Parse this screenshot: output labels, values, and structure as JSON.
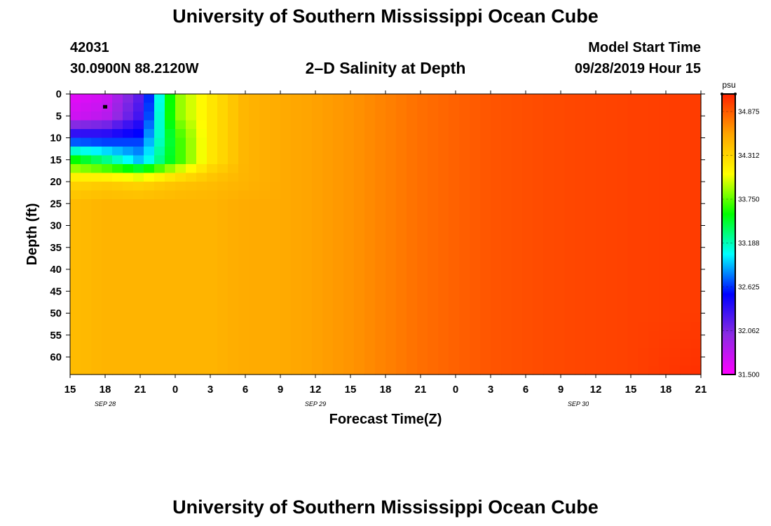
{
  "header": {
    "title": "University of Southern Mississippi Ocean Cube",
    "station_id": "42031",
    "location": "30.0900N 88.2120W",
    "plot_title": "2–D Salinity at Depth",
    "model_label": "Model Start Time",
    "model_time": "09/28/2019 Hour 15"
  },
  "footer": {
    "title": "University of Southern Mississippi Ocean Cube"
  },
  "colors": {
    "background": "#ffffff",
    "colorbar_stops": [
      "#ff00ff",
      "#8a2be2",
      "#0000ff",
      "#00ffff",
      "#00ff00",
      "#ffff00",
      "#ffa500",
      "#ff2200"
    ]
  },
  "chart_data": {
    "type": "heatmap",
    "title": "2–D Salinity at Depth",
    "xlabel": "Forecast Time(Z)",
    "ylabel": "Depth (ft)",
    "x_ticks": [
      "15",
      "18",
      "21",
      "0",
      "3",
      "6",
      "9",
      "12",
      "15",
      "18",
      "21",
      "0",
      "3",
      "6",
      "9",
      "12",
      "15",
      "18",
      "21"
    ],
    "date_labels": [
      {
        "text": "SEP 28",
        "tick_index": 1
      },
      {
        "text": "SEP 29",
        "tick_index": 7
      },
      {
        "text": "SEP 30",
        "tick_index": 14.5
      }
    ],
    "y_ticks": [
      "0",
      "5",
      "10",
      "15",
      "20",
      "25",
      "30",
      "35",
      "40",
      "45",
      "50",
      "55",
      "60"
    ],
    "ylim": [
      0,
      64
    ],
    "y_inverted": true,
    "colorbar": {
      "unit": "psu",
      "range": [
        31.5,
        35.1
      ],
      "labels": [
        "34.875",
        "34.312",
        "33.750",
        "33.188",
        "32.625",
        "32.062",
        "31.500"
      ]
    },
    "salinity_psu": {
      "depth_ft": [
        0,
        5,
        10,
        15,
        20,
        25,
        30,
        40,
        50,
        64
      ],
      "forecast_hour": [
        0,
        3,
        6,
        9,
        12,
        15,
        18,
        24,
        30,
        36,
        42,
        48,
        54
      ],
      "values": [
        [
          31.6,
          31.7,
          32.2,
          33.8,
          34.2,
          34.5,
          34.55,
          34.65,
          34.8,
          34.9,
          34.95,
          34.98,
          35.0
        ],
        [
          31.7,
          31.8,
          32.3,
          33.8,
          34.2,
          34.5,
          34.55,
          34.65,
          34.8,
          34.9,
          34.95,
          34.98,
          35.0
        ],
        [
          32.5,
          32.5,
          32.6,
          33.6,
          34.2,
          34.5,
          34.55,
          34.65,
          34.8,
          34.9,
          34.95,
          34.98,
          35.0
        ],
        [
          33.6,
          33.3,
          32.9,
          33.6,
          34.2,
          34.5,
          34.55,
          34.65,
          34.8,
          34.9,
          34.95,
          34.98,
          35.0
        ],
        [
          34.3,
          34.35,
          34.3,
          34.4,
          34.45,
          34.5,
          34.55,
          34.65,
          34.8,
          34.9,
          34.95,
          34.98,
          35.0
        ],
        [
          34.45,
          34.5,
          34.5,
          34.5,
          34.5,
          34.55,
          34.55,
          34.65,
          34.8,
          34.9,
          34.95,
          34.98,
          35.0
        ],
        [
          34.45,
          34.5,
          34.5,
          34.5,
          34.5,
          34.55,
          34.55,
          34.65,
          34.8,
          34.9,
          34.95,
          34.98,
          35.0
        ],
        [
          34.45,
          34.5,
          34.5,
          34.5,
          34.5,
          34.55,
          34.55,
          34.65,
          34.8,
          34.9,
          34.95,
          34.98,
          35.0
        ],
        [
          34.45,
          34.5,
          34.5,
          34.5,
          34.5,
          34.55,
          34.55,
          34.65,
          34.8,
          34.9,
          34.95,
          34.98,
          35.0
        ],
        [
          34.45,
          34.5,
          34.5,
          34.5,
          34.5,
          34.55,
          34.55,
          34.65,
          34.8,
          34.9,
          34.95,
          34.98,
          35.05
        ]
      ]
    },
    "marker": {
      "forecast_hour": 3,
      "depth_ft": 3
    }
  }
}
